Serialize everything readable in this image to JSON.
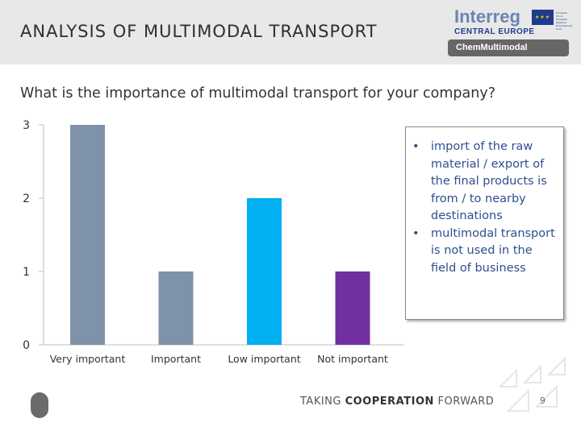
{
  "header": {
    "title": "ANALYSIS OF MULTIMODAL TRANSPORT",
    "logo_text": "Interreg",
    "logo_region": "CENTRAL EUROPE",
    "logo_eu_text": "European Union European Regional Development Fund",
    "project_badge": "ChemMultimodal"
  },
  "question": "What is the importance of multimodal transport for your company?",
  "chart_data": {
    "type": "bar",
    "categories": [
      "Very important",
      "Important",
      "Low important",
      "Not important"
    ],
    "values": [
      3,
      1,
      2,
      1
    ],
    "colors": [
      "#7f93a8",
      "#7f93a8",
      "#00b0f0",
      "#7030a0"
    ],
    "ylim": [
      0,
      3
    ],
    "yticks": [
      "0",
      "1",
      "2",
      "3"
    ],
    "grid": false,
    "title": "",
    "xlabel": "",
    "ylabel": ""
  },
  "note": {
    "items": [
      "import of the raw material / export of the final products is from / to nearby destinations",
      "multimodal transport is not used in the field of business"
    ]
  },
  "footer": {
    "tagline_prefix": "TAKING",
    "tagline_bold": "COOPERATION",
    "tagline_suffix": "FORWARD",
    "page_number": "9"
  }
}
